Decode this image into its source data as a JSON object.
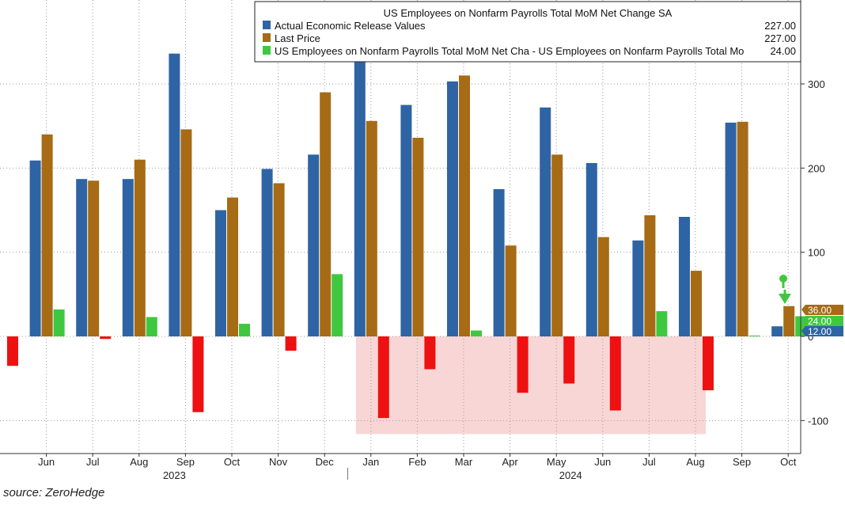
{
  "source": "source: ZeroHedge",
  "chart_data": {
    "type": "bar",
    "title": "US Employees on Nonfarm Payrolls Total MoM Net Change SA",
    "categories": [
      "",
      "Jun",
      "Jul",
      "Aug",
      "Sep",
      "Oct",
      "Nov",
      "Dec",
      "Jan",
      "Feb",
      "Mar",
      "Apr",
      "May",
      "Jun",
      "Jul",
      "Aug",
      "Sep",
      "Oct"
    ],
    "year_labels": [
      "2023",
      "2024"
    ],
    "ylim": [
      -140,
      395
    ],
    "yticks": [
      -100,
      0,
      100,
      200,
      300
    ],
    "ytick_labels": [
      "-100",
      "0",
      "100",
      "200",
      "300"
    ],
    "grid": true,
    "legend_position": "top-right",
    "shaded_region": {
      "from": "Jan",
      "to": "Aug",
      "ymin": -116,
      "ymax": 0,
      "color": "#f8d6d6"
    },
    "series": [
      {
        "name": "Actual Economic Release Values",
        "color": "#2e64a4",
        "legend_value": "227.00",
        "values": [
          null,
          209,
          187,
          187,
          336,
          150,
          199,
          216,
          353,
          275,
          303,
          175,
          272,
          206,
          114,
          142,
          254,
          12
        ]
      },
      {
        "name": "Last Price",
        "color": "#a66b14",
        "legend_value": "227.00",
        "values": [
          null,
          240,
          185,
          210,
          246,
          165,
          182,
          290,
          256,
          236,
          310,
          108,
          216,
          118,
          144,
          78,
          255,
          36
        ]
      },
      {
        "name": "US Employees on Nonfarm Payrolls Total MoM Net Cha - US Employees on Nonfarm Payrolls Total Mo",
        "color": "#3fc83f",
        "negative_color": "#ee1111",
        "legend_value": "24.00",
        "values": [
          -35,
          32,
          -3,
          23,
          -90,
          15,
          -17,
          74,
          -97,
          -39,
          7,
          -67,
          -56,
          -88,
          30,
          -64,
          1,
          24
        ]
      }
    ],
    "value_tags": [
      {
        "label": "36.00",
        "color": "#a66b14"
      },
      {
        "label": "24.00",
        "color": "#3fc83f"
      },
      {
        "label": "12.00",
        "color": "#2e64a4"
      }
    ]
  }
}
